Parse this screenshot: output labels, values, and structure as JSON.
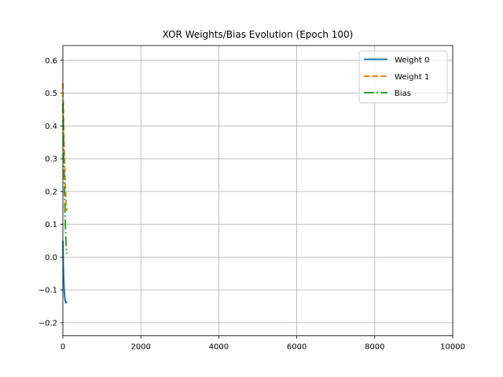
{
  "chart_data": {
    "type": "line",
    "title": "XOR Weights/Bias Evolution (Epoch 100)",
    "xlabel": "",
    "ylabel": "",
    "xlim": [
      0,
      10000
    ],
    "ylim": [
      -0.24,
      0.645
    ],
    "xticks": [
      0,
      2000,
      4000,
      6000,
      8000,
      10000
    ],
    "yticks": [
      -0.2,
      -0.1,
      0.0,
      0.1,
      0.2,
      0.3,
      0.4,
      0.5,
      0.6
    ],
    "xtick_labels": [
      "0",
      "2000",
      "4000",
      "6000",
      "8000",
      "10000"
    ],
    "ytick_labels": [
      "−0.2",
      "−0.1",
      "0.0",
      "0.1",
      "0.2",
      "0.3",
      "0.4",
      "0.5",
      "0.6"
    ],
    "grid": true,
    "legend_position": "top-right",
    "series": [
      {
        "name": "Weight 0",
        "color": "#1f77b4",
        "style": "solid",
        "x": [
          0,
          10,
          20,
          30,
          40,
          50,
          60,
          70,
          80,
          90,
          100
        ],
        "y": [
          0.05,
          -0.02,
          -0.06,
          -0.09,
          -0.11,
          -0.125,
          -0.132,
          -0.137,
          -0.14,
          -0.138,
          -0.135
        ]
      },
      {
        "name": "Weight 1",
        "color": "#ff7f0e",
        "style": "dashed",
        "x": [
          0,
          10,
          20,
          30,
          40,
          50,
          60,
          70,
          80,
          90,
          100
        ],
        "y": [
          0.53,
          0.47,
          0.41,
          0.36,
          0.31,
          0.27,
          0.23,
          0.2,
          0.17,
          0.15,
          0.14
        ]
      },
      {
        "name": "Bias",
        "color": "#2ca02c",
        "style": "dashdot",
        "x": [
          0,
          10,
          20,
          30,
          40,
          50,
          60,
          70,
          80,
          90,
          100
        ],
        "y": [
          0.47,
          0.4,
          0.33,
          0.27,
          0.21,
          0.16,
          0.11,
          0.07,
          0.04,
          0.02,
          0.01
        ]
      }
    ]
  }
}
